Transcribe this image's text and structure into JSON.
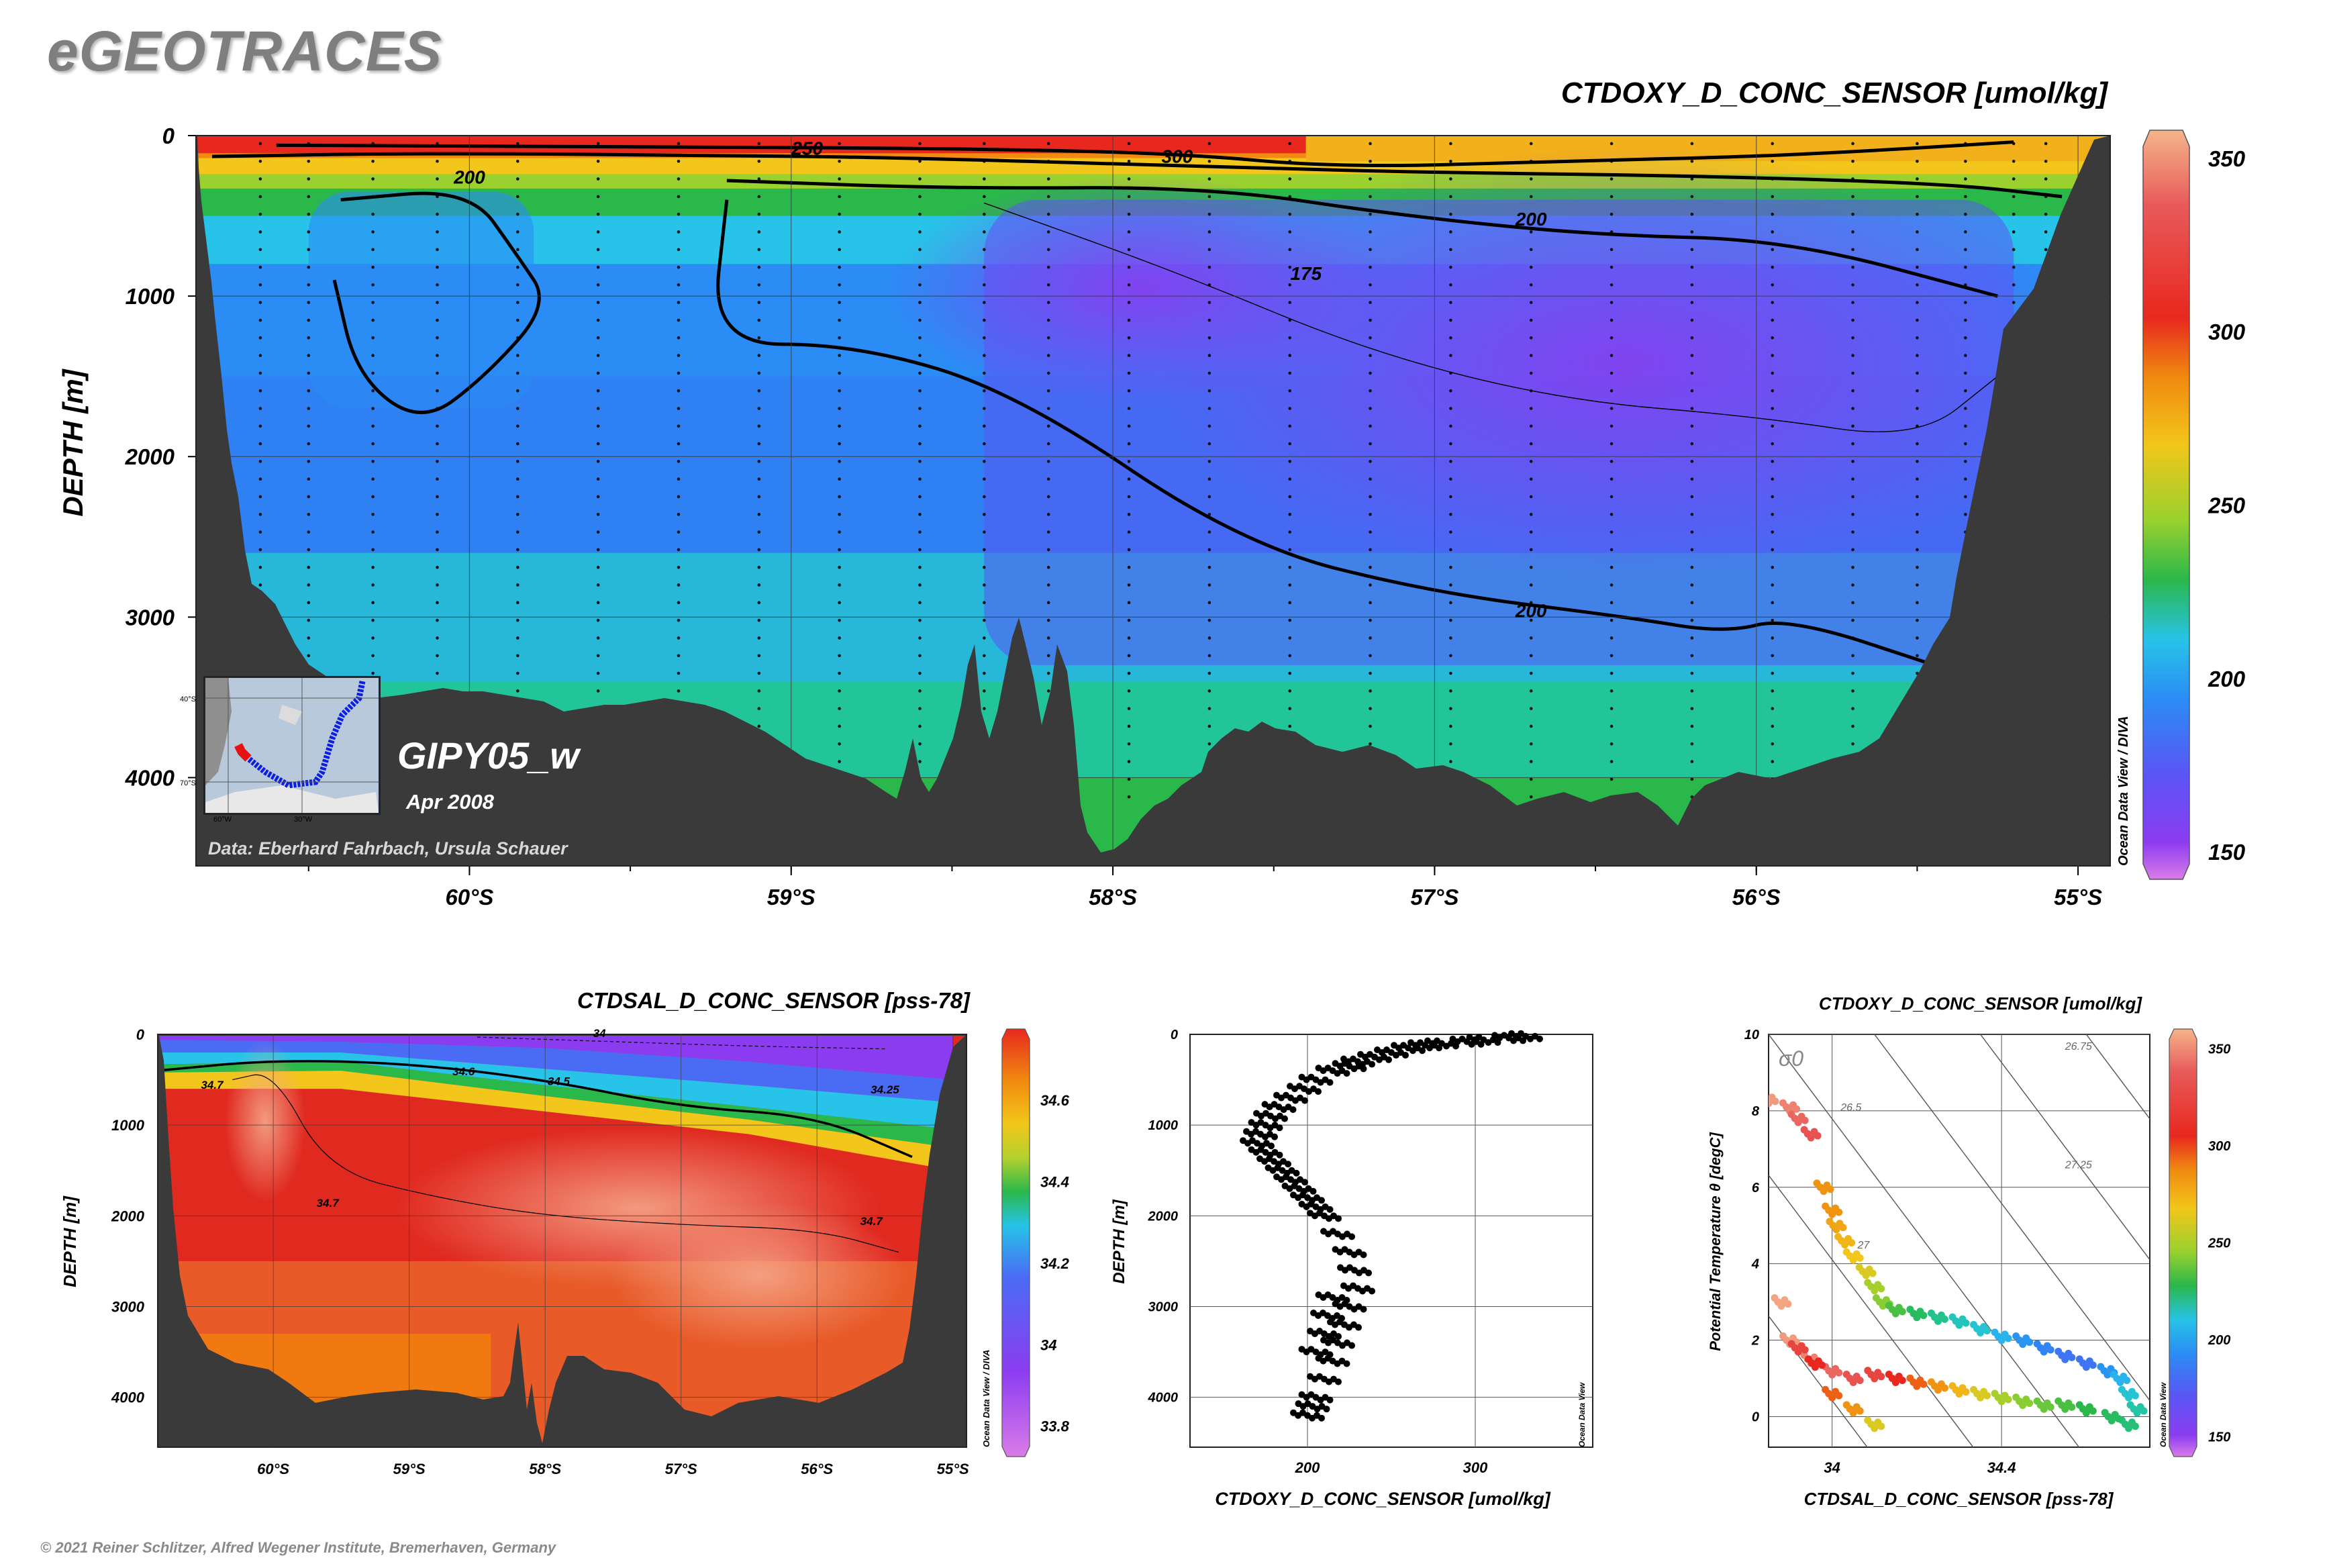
{
  "brand": "eGEOTRACES",
  "copyright": "© 2021 Reiner Schlitzer, Alfred Wegener Institute, Bremerhaven, Germany",
  "colors": {
    "land": "#3a3a3a",
    "oxygen_scale": [
      "#d97ce8",
      "#8c3cf0",
      "#5a55f5",
      "#2b8cf5",
      "#27c3e8",
      "#22c59a",
      "#2ab84a",
      "#9ad12e",
      "#f2c61a",
      "#f08a10",
      "#e8281e",
      "#e85a5a",
      "#f5b48a"
    ],
    "salinity_scale": [
      "#d97ce8",
      "#8c3cf0",
      "#4a6cf5",
      "#27c3e8",
      "#2ab84a",
      "#b5d12e",
      "#f2c61a",
      "#f08a10",
      "#e8281e",
      "#f5a68a"
    ]
  },
  "main_section": {
    "title": "CTDOXY_D_CONC_SENSOR [umol/kg]",
    "ylabel": "DEPTH [m]",
    "yticks": [
      "0",
      "1000",
      "2000",
      "3000",
      "4000"
    ],
    "xticks": [
      "60°S",
      "59°S",
      "58°S",
      "57°S",
      "56°S",
      "55°S"
    ],
    "colorbar_ticks": [
      "350",
      "300",
      "250",
      "200",
      "150"
    ],
    "contour_labels": [
      "250",
      "300",
      "200",
      "200",
      "175",
      "200"
    ],
    "cruise": "GIPY05_w",
    "date": "Apr 2008",
    "credit": "Data: Eberhard Fahrbach, Ursula Schauer",
    "software": "Ocean Data View / DIVA",
    "map_labels": [
      "40°S",
      "70°S",
      "60°W",
      "30°W"
    ]
  },
  "salinity_section": {
    "title": "CTDSAL_D_CONC_SENSOR [pss-78]",
    "ylabel": "DEPTH [m]",
    "yticks": [
      "0",
      "1000",
      "2000",
      "3000",
      "4000"
    ],
    "xticks": [
      "60°S",
      "59°S",
      "58°S",
      "57°S",
      "56°S",
      "55°S"
    ],
    "colorbar_ticks": [
      "34.6",
      "34.4",
      "34.2",
      "34",
      "33.8"
    ],
    "contour_labels": [
      "34",
      "34.6",
      "34.5",
      "34.25",
      "34.7",
      "34.7",
      "34.7"
    ],
    "software": "Ocean Data View / DIVA"
  },
  "profile": {
    "xlabel": "CTDOXY_D_CONC_SENSOR [umol/kg]",
    "ylabel": "DEPTH [m]",
    "yticks": [
      "0",
      "1000",
      "2000",
      "3000",
      "4000"
    ],
    "xticks": [
      "200",
      "300"
    ],
    "software": "Ocean Data View"
  },
  "ts_plot": {
    "title": "CTDOXY_D_CONC_SENSOR [umol/kg]",
    "xlabel": "CTDSAL_D_CONC_SENSOR [pss-78]",
    "ylabel": "Potential Temperature θ [degC]",
    "sigma_label": "σ0",
    "yticks": [
      "10",
      "8",
      "6",
      "4",
      "2",
      "0"
    ],
    "xticks": [
      "34",
      "34.4"
    ],
    "isopycnal_labels": [
      "26.75",
      "26.5",
      "27.25",
      "27"
    ],
    "colorbar_ticks": [
      "350",
      "300",
      "250",
      "200",
      "150"
    ],
    "software": "Ocean Data View"
  },
  "chart_data": [
    {
      "type": "heatmap",
      "title": "CTDOXY_D_CONC_SENSOR [umol/kg]",
      "xlabel": "",
      "ylabel": "DEPTH [m]",
      "xlim": [
        60.85,
        54.9
      ],
      "ylim": [
        4550,
        0
      ],
      "colorbar_range": [
        145,
        355
      ],
      "isolines": [
        {
          "value": 300,
          "points": [
            [
              60.6,
              60
            ],
            [
              59.5,
              70
            ],
            [
              58.5,
              80
            ],
            [
              57.8,
              110
            ],
            [
              57.3,
              200
            ],
            [
              56.6,
              160
            ],
            [
              56.0,
              130
            ],
            [
              55.6,
              90
            ],
            [
              55.2,
              40
            ]
          ]
        },
        {
          "value": 250,
          "points": [
            [
              60.8,
              130
            ],
            [
              60.2,
              110
            ],
            [
              59.3,
              120
            ],
            [
              58.6,
              140
            ],
            [
              57.6,
              200
            ],
            [
              57.0,
              230
            ],
            [
              56.2,
              250
            ],
            [
              55.4,
              300
            ],
            [
              55.05,
              380
            ]
          ]
        },
        {
          "value": 200,
          "points": [
            [
              60.4,
              400
            ],
            [
              60.0,
              330
            ],
            [
              59.85,
              750
            ],
            [
              59.75,
              1050
            ],
            [
              59.95,
              1500
            ],
            [
              60.15,
              1800
            ],
            [
              60.35,
              1500
            ],
            [
              60.42,
              900
            ]
          ]
        },
        {
          "value": 200,
          "points": [
            [
              59.2,
              280
            ],
            [
              58.5,
              330
            ],
            [
              57.7,
              320
            ],
            [
              57.1,
              500
            ],
            [
              56.5,
              620
            ],
            [
              55.9,
              650
            ],
            [
              55.25,
              1000
            ]
          ]
        },
        {
          "value": 175,
          "points": [
            [
              58.4,
              420
            ],
            [
              57.8,
              850
            ],
            [
              57.2,
              1350
            ],
            [
              56.6,
              1650
            ],
            [
              56.0,
              1750
            ],
            [
              55.5,
              1900
            ],
            [
              55.25,
              1500
            ]
          ]
        },
        {
          "value": 200,
          "points": [
            [
              59.2,
              400
            ],
            [
              59.25,
              1300
            ],
            [
              58.8,
              1300
            ],
            [
              58.3,
              1600
            ],
            [
              57.6,
              2550
            ],
            [
              57.0,
              2850
            ],
            [
              56.4,
              3000
            ],
            [
              56.1,
              3100
            ],
            [
              55.9,
              3000
            ],
            [
              55.4,
              3330
            ]
          ]
        }
      ],
      "annotation": "GIPY05_w"
    },
    {
      "type": "heatmap",
      "title": "CTDSAL_D_CONC_SENSOR [pss-78]",
      "xlabel": "",
      "ylabel": "DEPTH [m]",
      "xlim": [
        60.85,
        54.9
      ],
      "ylim": [
        4550,
        0
      ],
      "colorbar_range": [
        33.75,
        34.75
      ],
      "isolines": [
        {
          "value": 34.5,
          "points": [
            [
              60.85,
              400
            ],
            [
              60.0,
              280
            ],
            [
              59.0,
              320
            ],
            [
              58.0,
              500
            ],
            [
              57.0,
              800
            ],
            [
              56.0,
              900
            ],
            [
              55.3,
              1350
            ]
          ]
        },
        {
          "value": 34.0,
          "points": [
            [
              58.5,
              30
            ],
            [
              57.5,
              80
            ],
            [
              56.5,
              130
            ],
            [
              55.5,
              160
            ]
          ]
        },
        {
          "value": 34.7,
          "points": [
            [
              60.3,
              500
            ],
            [
              60.0,
              400
            ],
            [
              59.6,
              1500
            ],
            [
              58.8,
              1800
            ],
            [
              58.0,
              2000
            ],
            [
              57.0,
              2100
            ],
            [
              56.0,
              2150
            ],
            [
              55.4,
              2400
            ]
          ]
        }
      ]
    },
    {
      "type": "scatter",
      "xlabel": "CTDOXY_D_CONC_SENSOR [umol/kg]",
      "ylabel": "DEPTH [m]",
      "xlim": [
        130,
        370
      ],
      "ylim": [
        4550,
        0
      ],
      "series": [
        {
          "x": [
            330,
            320,
            305,
            295,
            280,
            270,
            260,
            250,
            240,
            230,
            225,
            215,
            205,
            198,
            190,
            183,
            178,
            175,
            172,
            170,
            175,
            180,
            185,
            190,
            195,
            200,
            205,
            210,
            218,
            225,
            228,
            230,
            225,
            222,
            218,
            215,
            210,
            205,
            203,
            200,
            205,
            210,
            212,
            215
          ],
          "y": [
            20,
            40,
            60,
            80,
            100,
            120,
            150,
            200,
            250,
            300,
            350,
            400,
            500,
            600,
            700,
            800,
            900,
            1000,
            1100,
            1200,
            1300,
            1400,
            1500,
            1600,
            1700,
            1800,
            1900,
            2000,
            2200,
            2400,
            2600,
            2800,
            3000,
            3200,
            3400,
            3600,
            3800,
            4000,
            4100,
            4200,
            3500,
            3300,
            3100,
            2900
          ]
        }
      ]
    },
    {
      "type": "scatter",
      "title": "CTDOXY_D_CONC_SENSOR [umol/kg]",
      "xlabel": "CTDSAL_D_CONC_SENSOR [pss-78]",
      "ylabel": "Potential Temperature θ [degC]",
      "xlim": [
        33.85,
        34.75
      ],
      "ylim": [
        -0.8,
        10
      ],
      "colorbar_range": [
        145,
        355
      ],
      "series": [
        {
          "x": [
            33.85,
            33.9,
            33.92,
            33.95,
            33.98,
            34.0,
            34.01,
            34.03,
            34.05,
            34.08,
            34.1,
            34.12,
            34.15,
            34.2,
            34.25,
            34.3,
            34.35,
            34.4,
            34.45,
            34.5,
            34.55,
            34.6,
            34.65,
            34.68,
            34.7,
            34.72,
            34.7,
            34.66,
            34.6,
            34.55,
            34.5,
            34.45,
            34.4,
            34.35,
            34.3,
            34.25,
            34.2,
            34.15,
            34.1,
            34.05,
            34.0,
            33.95,
            33.9,
            33.88,
            33.92,
            33.96,
            34.0,
            34.05,
            34.1
          ],
          "y": [
            8.3,
            8.1,
            7.8,
            7.4,
            6.0,
            5.4,
            5.0,
            4.6,
            4.2,
            3.8,
            3.4,
            3.0,
            2.8,
            2.7,
            2.6,
            2.5,
            2.3,
            2.1,
            2.0,
            1.8,
            1.6,
            1.4,
            1.2,
            1.0,
            0.6,
            0.2,
            -0.2,
            0.0,
            0.2,
            0.3,
            0.3,
            0.4,
            0.5,
            0.6,
            0.7,
            0.8,
            0.9,
            1.0,
            1.1,
            1.0,
            1.2,
            1.5,
            2.0,
            3.0,
            1.8,
            1.4,
            0.6,
            0.2,
            -0.2
          ],
          "values": [
            350,
            345,
            340,
            335,
            300,
            300,
            295,
            290,
            285,
            280,
            270,
            265,
            255,
            245,
            235,
            225,
            220,
            210,
            200,
            195,
            190,
            190,
            200,
            210,
            220,
            230,
            240,
            245,
            250,
            255,
            260,
            265,
            270,
            280,
            290,
            300,
            310,
            320,
            330,
            335,
            340,
            345,
            350,
            352,
            330,
            320,
            310,
            300,
            280
          ]
        }
      ]
    }
  ]
}
